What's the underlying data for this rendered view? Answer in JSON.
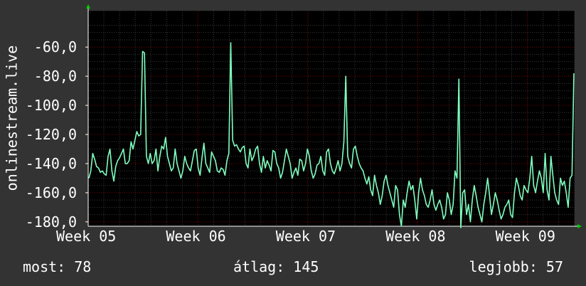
{
  "chart_data": {
    "type": "line",
    "ylabel": "onlinestream.live",
    "ylim": [
      -183,
      -35
    ],
    "yticks": [
      -60,
      -80,
      -100,
      -120,
      -140,
      -160,
      -180
    ],
    "ytick_labels": [
      "-60,0",
      "-80,0",
      "-100,0",
      "-120,0",
      "-140,0",
      "-160,0",
      "-180,0"
    ],
    "x_range_weeks": [
      5,
      9.43
    ],
    "xticks": [
      5,
      6,
      7,
      8,
      9
    ],
    "xtick_labels": [
      "Week 05",
      "Week 06",
      "Week 07",
      "Week 08",
      "Week 09"
    ],
    "grid": true,
    "line_color": "#7fffbf",
    "grid_color": "#800000",
    "series": [
      {
        "values": [
          -150,
          -145,
          -133,
          -137,
          -142,
          -143,
          -146,
          -145,
          -147,
          -148,
          -135,
          -130,
          -145,
          -152,
          -142,
          -138,
          -136,
          -133,
          -130,
          -140,
          -140,
          -138,
          -125,
          -130,
          -124,
          -118,
          -121,
          -120,
          -63,
          -64,
          -135,
          -140,
          -133,
          -140,
          -138,
          -130,
          -145,
          -135,
          -128,
          -130,
          -122,
          -135,
          -140,
          -145,
          -143,
          -130,
          -140,
          -145,
          -150,
          -145,
          -135,
          -140,
          -143,
          -145,
          -138,
          -131,
          -130,
          -143,
          -148,
          -136,
          -126,
          -140,
          -143,
          -146,
          -132,
          -135,
          -138,
          -145,
          -146,
          -143,
          -144,
          -148,
          -138,
          -133,
          -57,
          -124,
          -128,
          -127,
          -130,
          -132,
          -129,
          -128,
          -140,
          -143,
          -130,
          -138,
          -135,
          -130,
          -128,
          -140,
          -146,
          -135,
          -143,
          -138,
          -141,
          -145,
          -131,
          -132,
          -140,
          -143,
          -150,
          -146,
          -138,
          -130,
          -135,
          -140,
          -150,
          -146,
          -143,
          -148,
          -137,
          -138,
          -145,
          -140,
          -130,
          -135,
          -145,
          -150,
          -147,
          -141,
          -140,
          -135,
          -145,
          -148,
          -132,
          -130,
          -140,
          -145,
          -147,
          -143,
          -138,
          -145,
          -140,
          -125,
          -80,
          -135,
          -140,
          -143,
          -130,
          -128,
          -135,
          -140,
          -143,
          -145,
          -150,
          -154,
          -149,
          -158,
          -162,
          -148,
          -155,
          -160,
          -168,
          -162,
          -152,
          -148,
          -155,
          -160,
          -165,
          -170,
          -155,
          -158,
          -175,
          -183,
          -165,
          -170,
          -160,
          -152,
          -158,
          -155,
          -165,
          -178,
          -160,
          -150,
          -158,
          -162,
          -168,
          -170,
          -165,
          -158,
          -168,
          -172,
          -168,
          -165,
          -170,
          -178,
          -175,
          -160,
          -165,
          -175,
          -168,
          -145,
          -150,
          -82,
          -184,
          -160,
          -158,
          -175,
          -168,
          -180,
          -165,
          -155,
          -162,
          -170,
          -175,
          -180,
          -168,
          -160,
          -150,
          -162,
          -175,
          -168,
          -160,
          -165,
          -172,
          -178,
          -175,
          -170,
          -168,
          -165,
          -175,
          -177,
          -160,
          -150,
          -155,
          -162,
          -165,
          -155,
          -158,
          -160,
          -150,
          -135,
          -155,
          -160,
          -152,
          -145,
          -150,
          -160,
          -133,
          -158,
          -165,
          -135,
          -148,
          -160,
          -165,
          -168,
          -150,
          -155,
          -152,
          -160,
          -170,
          -150,
          -148,
          -78
        ]
      }
    ]
  },
  "stats": {
    "now": "most: 78",
    "avg": "átlag: 145",
    "best": "legjobb: 57"
  }
}
